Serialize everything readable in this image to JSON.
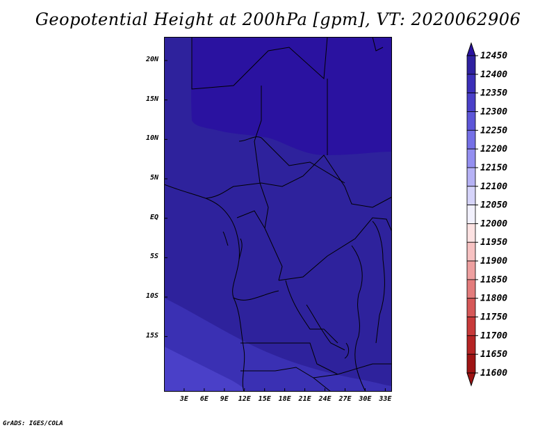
{
  "title": "Geopotential Height at 200hPa [gpm], VT: 2020062906",
  "credit": "GrADS: IGES/COLA",
  "map": {
    "projection": "latlon",
    "lon_range": [
      0,
      34
    ],
    "lat_range": [
      -22,
      23
    ],
    "lat_ticks": [
      {
        "label": "20N",
        "value": 20
      },
      {
        "label": "15N",
        "value": 15
      },
      {
        "label": "10N",
        "value": 10
      },
      {
        "label": "5N",
        "value": 5
      },
      {
        "label": "EQ",
        "value": 0
      },
      {
        "label": "5S",
        "value": -5
      },
      {
        "label": "10S",
        "value": -10
      },
      {
        "label": "15S",
        "value": -15
      }
    ],
    "lon_ticks": [
      {
        "label": "3E",
        "value": 3
      },
      {
        "label": "6E",
        "value": 6
      },
      {
        "label": "9E",
        "value": 9
      },
      {
        "label": "12E",
        "value": 12
      },
      {
        "label": "15E",
        "value": 15
      },
      {
        "label": "18E",
        "value": 18
      },
      {
        "label": "21E",
        "value": 21
      },
      {
        "label": "24E",
        "value": 24
      },
      {
        "label": "27E",
        "value": 27
      },
      {
        "label": "30E",
        "value": 30
      },
      {
        "label": "33E",
        "value": 33
      }
    ],
    "field_bands_gpm": [
      12400,
      12350,
      12300,
      12250
    ]
  },
  "colorbar": {
    "levels": [
      "12450",
      "12400",
      "12350",
      "12300",
      "12250",
      "12200",
      "12150",
      "12100",
      "12050",
      "12000",
      "11950",
      "11900",
      "11850",
      "11800",
      "11750",
      "11700",
      "11650",
      "11600"
    ],
    "colors": [
      "#2a12a0",
      "#2f21a0",
      "#3b2fb8",
      "#4a40c8",
      "#5d56d8",
      "#7570e6",
      "#948ff0",
      "#b6b2f5",
      "#d6d4fa",
      "#f2f1fd",
      "#fde2e2",
      "#f7c2c2",
      "#eea0a0",
      "#e37c7c",
      "#d65858",
      "#c83a3a",
      "#b52424",
      "#9e1414"
    ]
  }
}
